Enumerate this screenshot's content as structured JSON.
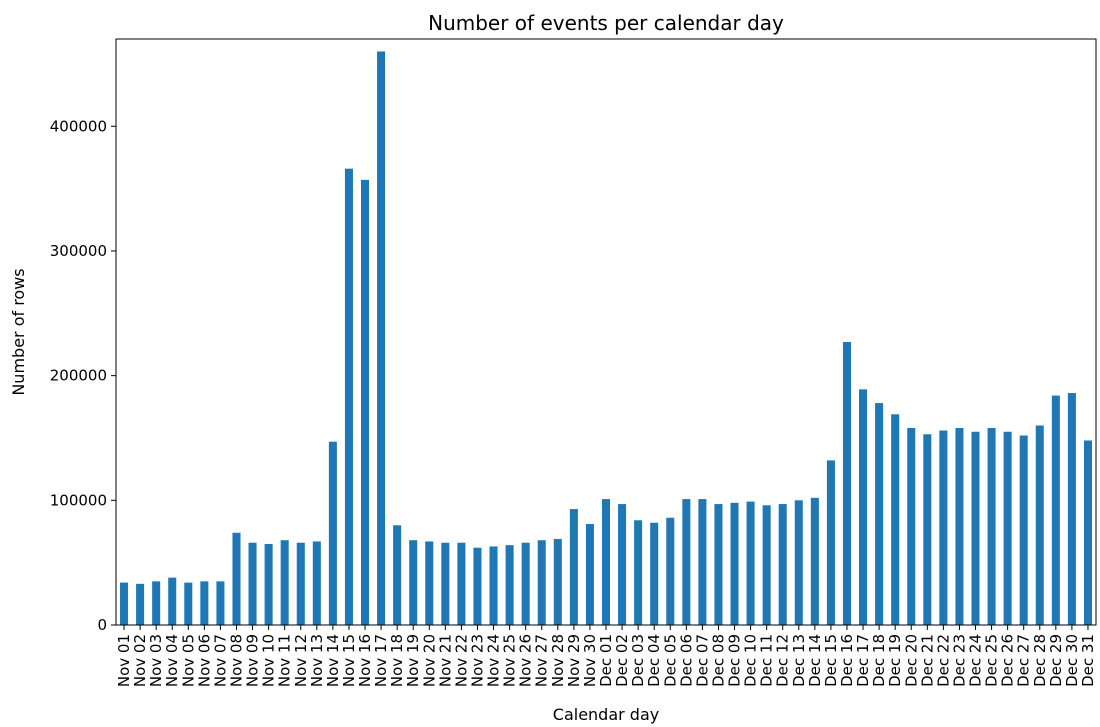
{
  "chart_data": {
    "type": "bar",
    "title": "Number of events per calendar day",
    "xlabel": "Calendar day",
    "ylabel": "Number of rows",
    "ylim": [
      0,
      470000
    ],
    "yticks": [
      0,
      100000,
      200000,
      300000,
      400000
    ],
    "grid": false,
    "legend": "none",
    "bar_color": "#1f77b4",
    "categories": [
      "Nov 01",
      "Nov 02",
      "Nov 03",
      "Nov 04",
      "Nov 05",
      "Nov 06",
      "Nov 07",
      "Nov 08",
      "Nov 09",
      "Nov 10",
      "Nov 11",
      "Nov 12",
      "Nov 13",
      "Nov 14",
      "Nov 15",
      "Nov 16",
      "Nov 17",
      "Nov 18",
      "Nov 19",
      "Nov 20",
      "Nov 21",
      "Nov 22",
      "Nov 23",
      "Nov 24",
      "Nov 25",
      "Nov 26",
      "Nov 27",
      "Nov 28",
      "Nov 29",
      "Nov 30",
      "Dec 01",
      "Dec 02",
      "Dec 03",
      "Dec 04",
      "Dec 05",
      "Dec 06",
      "Dec 07",
      "Dec 08",
      "Dec 09",
      "Dec 10",
      "Dec 11",
      "Dec 12",
      "Dec 13",
      "Dec 14",
      "Dec 15",
      "Dec 16",
      "Dec 17",
      "Dec 18",
      "Dec 19",
      "Dec 20",
      "Dec 21",
      "Dec 22",
      "Dec 23",
      "Dec 24",
      "Dec 25",
      "Dec 26",
      "Dec 27",
      "Dec 28",
      "Dec 29",
      "Dec 30",
      "Dec 31"
    ],
    "values": [
      34000,
      33000,
      35000,
      38000,
      34000,
      35000,
      35000,
      74000,
      66000,
      65000,
      68000,
      66000,
      67000,
      147000,
      366000,
      357000,
      460000,
      80000,
      68000,
      67000,
      66000,
      66000,
      62000,
      63000,
      64000,
      66000,
      68000,
      69000,
      93000,
      81000,
      101000,
      97000,
      84000,
      82000,
      86000,
      101000,
      101000,
      97000,
      98000,
      99000,
      96000,
      97000,
      100000,
      102000,
      132000,
      227000,
      189000,
      178000,
      169000,
      158000,
      153000,
      156000,
      158000,
      155000,
      158000,
      155000,
      152000,
      160000,
      184000,
      186000,
      148000
    ]
  }
}
